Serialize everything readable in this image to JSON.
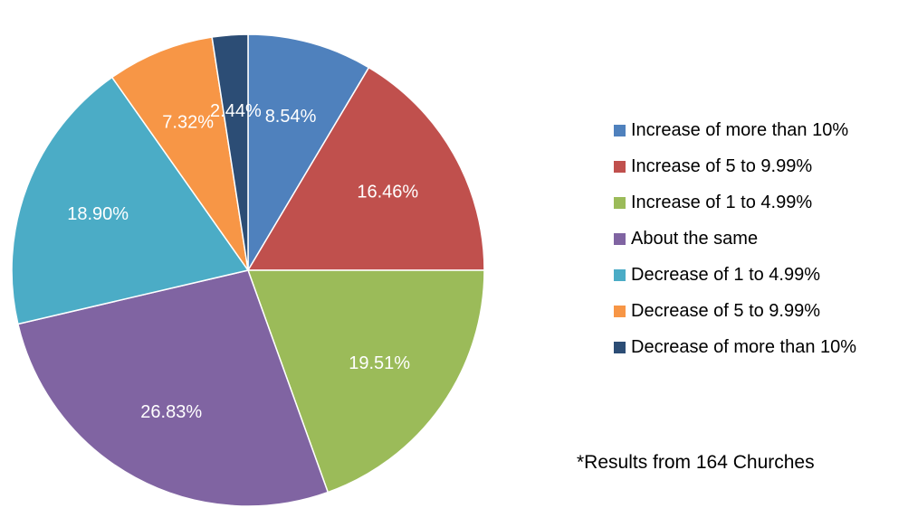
{
  "chart_data": {
    "type": "pie",
    "title": "",
    "categories": [
      "Increase of more than 10%",
      "Increase of 5 to 9.99%",
      "Increase of 1 to 4.99%",
      "About the same",
      "Decrease of 1 to 4.99%",
      "Decrease of 5 to 9.99%",
      "Decrease of more than 10%"
    ],
    "values": [
      8.54,
      16.46,
      19.51,
      26.83,
      18.9,
      7.32,
      2.44
    ],
    "labels": [
      "8.54%",
      "16.46%",
      "19.51%",
      "26.83%",
      "18.90%",
      "7.32%",
      "2.44%"
    ],
    "colors": [
      "#4F81BD",
      "#C0504D",
      "#9BBB59",
      "#8064A2",
      "#4BACC6",
      "#F79646",
      "#2C4D75"
    ],
    "legend_position": "right",
    "start_angle": "12 o'clock, clockwise"
  },
  "footnote": "*Results from 164 Churches"
}
